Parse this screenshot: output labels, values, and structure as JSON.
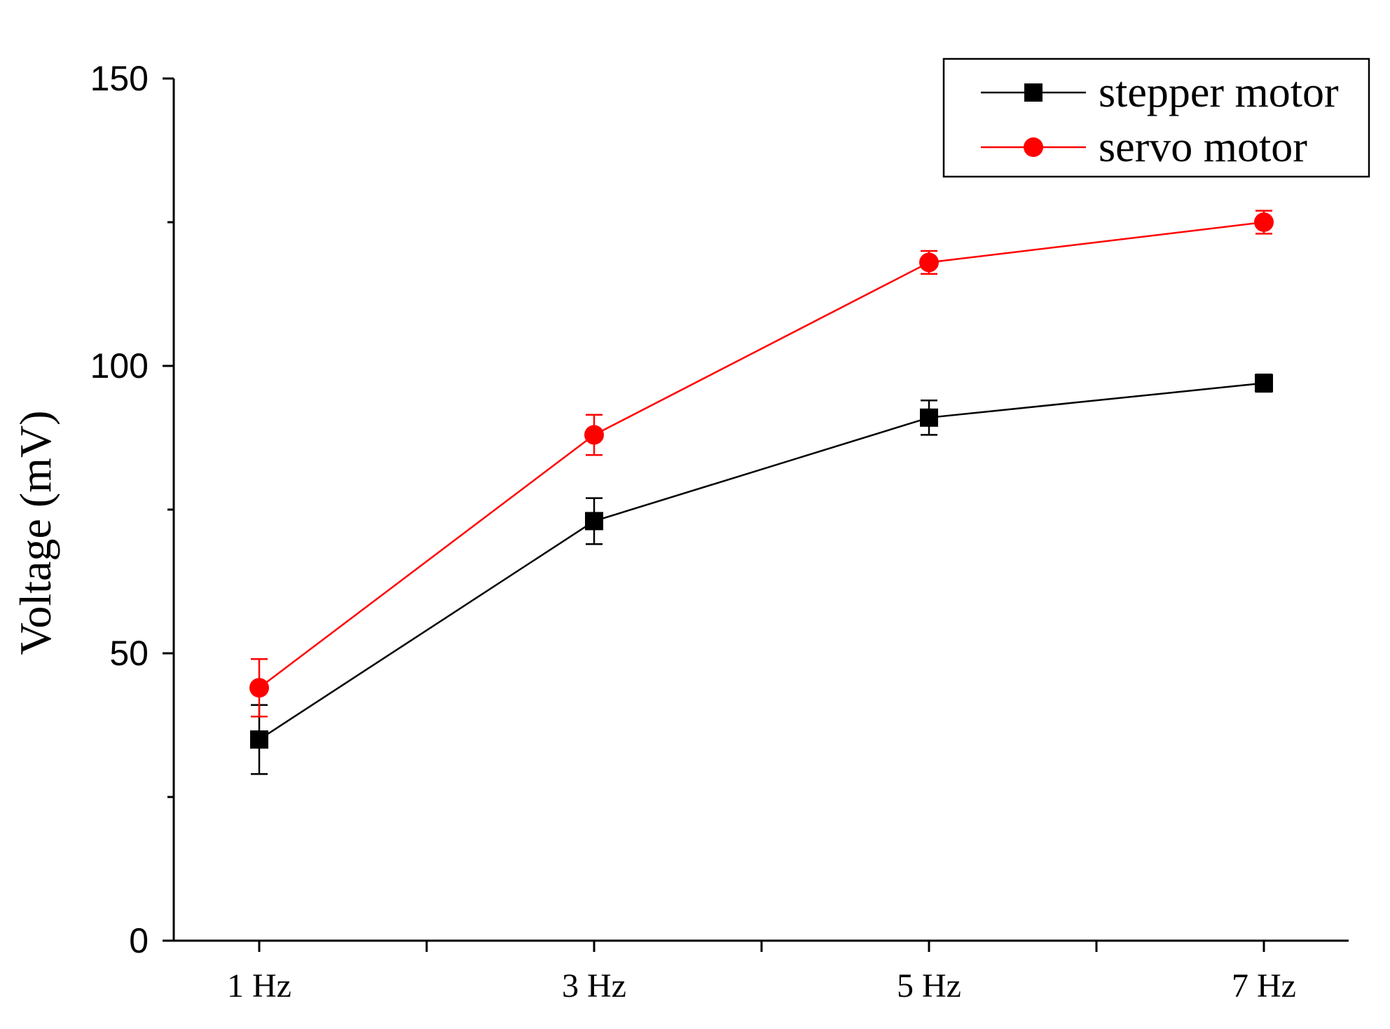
{
  "chart_data": {
    "type": "line",
    "title": "",
    "xlabel": "",
    "ylabel": "Voltage (mV)",
    "categories": [
      "1 Hz",
      "3 Hz",
      "5 Hz",
      "7 Hz"
    ],
    "ylim": [
      0,
      150
    ],
    "yticks": [
      0,
      50,
      100,
      150
    ],
    "grid": false,
    "legend_position": "top-right",
    "series": [
      {
        "name": "stepper motor",
        "color": "#000000",
        "marker": "square",
        "values": [
          35,
          73,
          91,
          97
        ],
        "errors": [
          6,
          4,
          3,
          1.5
        ]
      },
      {
        "name": "servo motor",
        "color": "#ff0000",
        "marker": "circle",
        "values": [
          44,
          88,
          118,
          125
        ],
        "errors": [
          5,
          3.5,
          2,
          2
        ]
      }
    ]
  }
}
